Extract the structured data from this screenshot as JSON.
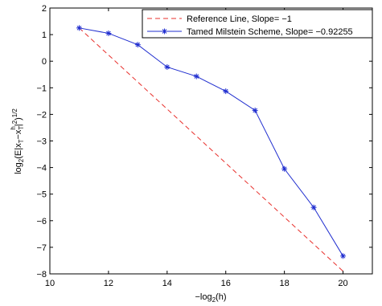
{
  "chart_data": {
    "type": "line",
    "xlabel": "−log",
    "xlabel_sub": "2",
    "xlabel_tail": "(h)",
    "ylabel_parts": [
      "log",
      "2",
      "(E|x",
      "T",
      "−x",
      "T",
      "h",
      "|",
      "2",
      ")",
      "1/2"
    ],
    "xlim": [
      10,
      21
    ],
    "ylim": [
      -8,
      2
    ],
    "x_ticks": [
      10,
      12,
      14,
      16,
      18,
      20
    ],
    "y_ticks": [
      -8,
      -7,
      -6,
      -5,
      -4,
      -3,
      -2,
      -1,
      0,
      1,
      2
    ],
    "x_tick_labels": [
      "10",
      "12",
      "14",
      "16",
      "18",
      "20"
    ],
    "y_tick_labels": [
      "−8",
      "−7",
      "−6",
      "−5",
      "−4",
      "−3",
      "−2",
      "−1",
      "0",
      "1",
      "2"
    ],
    "grid": false,
    "legend_position": "top-right",
    "series": [
      {
        "name": "Reference Line, Slope= −1",
        "style": "dashed",
        "color": "#e8302c",
        "marker": "none",
        "x": [
          11,
          20
        ],
        "y": [
          1.25,
          -7.9
        ]
      },
      {
        "name": "Tamed Milstein Scheme, Slope= −0.92255",
        "style": "solid",
        "color": "#1f2dcf",
        "marker": "asterisk",
        "x": [
          11,
          12,
          13,
          14,
          15,
          16,
          17,
          18,
          19,
          20
        ],
        "y": [
          1.25,
          1.05,
          0.62,
          -0.22,
          -0.57,
          -1.13,
          -1.85,
          -4.05,
          -5.5,
          -7.33
        ]
      }
    ]
  }
}
